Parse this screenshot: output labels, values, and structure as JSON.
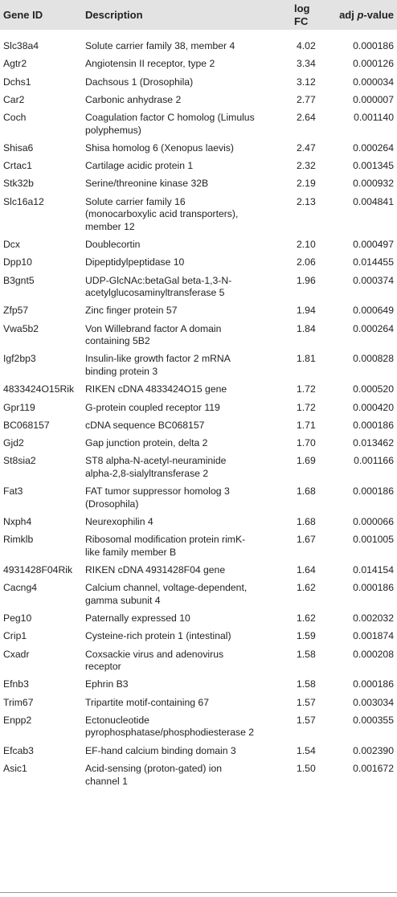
{
  "table": {
    "headers": {
      "gene_id": "Gene ID",
      "description": "Description",
      "log_fc": "log FC",
      "adj_p_prefix": "adj ",
      "adj_p_italic": "p",
      "adj_p_suffix": "-value"
    },
    "rows": [
      {
        "gene": "Slc38a4",
        "desc": "Solute carrier family 38, member 4",
        "fc": "4.02",
        "p": "0.000186"
      },
      {
        "gene": "Agtr2",
        "desc": "Angiotensin II receptor, type 2",
        "fc": "3.34",
        "p": "0.000126"
      },
      {
        "gene": "Dchs1",
        "desc": "Dachsous 1 (Drosophila)",
        "fc": "3.12",
        "p": "0.000034"
      },
      {
        "gene": "Car2",
        "desc": "Carbonic anhydrase 2",
        "fc": "2.77",
        "p": "0.000007"
      },
      {
        "gene": "Coch",
        "desc": "Coagulation factor C homolog (Limulus polyphemus)",
        "fc": "2.64",
        "p": "0.001140"
      },
      {
        "gene": "Shisa6",
        "desc": "Shisa homolog 6 (Xenopus laevis)",
        "fc": "2.47",
        "p": "0.000264"
      },
      {
        "gene": "Crtac1",
        "desc": "Cartilage acidic protein 1",
        "fc": "2.32",
        "p": "0.001345"
      },
      {
        "gene": "Stk32b",
        "desc": "Serine/threonine kinase 32B",
        "fc": "2.19",
        "p": "0.000932"
      },
      {
        "gene": "Slc16a12",
        "desc": "Solute carrier family 16 (monocarboxylic acid transporters), member 12",
        "fc": "2.13",
        "p": "0.004841"
      },
      {
        "gene": "Dcx",
        "desc": "Doublecortin",
        "fc": "2.10",
        "p": "0.000497"
      },
      {
        "gene": "Dpp10",
        "desc": "Dipeptidylpeptidase 10",
        "fc": "2.06",
        "p": "0.014455"
      },
      {
        "gene": "B3gnt5",
        "desc": "UDP-GlcNAc:betaGal beta-1,3-N-acetylglucosaminyltransferase 5",
        "fc": "1.96",
        "p": "0.000374"
      },
      {
        "gene": "Zfp57",
        "desc": "Zinc finger protein 57",
        "fc": "1.94",
        "p": "0.000649"
      },
      {
        "gene": "Vwa5b2",
        "desc": "Von Willebrand factor A domain containing 5B2",
        "fc": "1.84",
        "p": "0.000264"
      },
      {
        "gene": "Igf2bp3",
        "desc": "Insulin-like growth factor 2 mRNA binding protein 3",
        "fc": "1.81",
        "p": "0.000828"
      },
      {
        "gene": "4833424O15Rik",
        "desc": "RIKEN cDNA 4833424O15 gene",
        "fc": "1.72",
        "p": "0.000520"
      },
      {
        "gene": "Gpr119",
        "desc": "G-protein coupled receptor 119",
        "fc": "1.72",
        "p": "0.000420"
      },
      {
        "gene": "BC068157",
        "desc": "cDNA sequence BC068157",
        "fc": "1.71",
        "p": "0.000186"
      },
      {
        "gene": "Gjd2",
        "desc": "Gap junction protein, delta 2",
        "fc": "1.70",
        "p": "0.013462"
      },
      {
        "gene": "St8sia2",
        "desc": "ST8 alpha-N-acetyl-neuraminide alpha-2,8-sialyltransferase 2",
        "fc": "1.69",
        "p": "0.001166"
      },
      {
        "gene": "Fat3",
        "desc": "FAT tumor suppressor homolog 3 (Drosophila)",
        "fc": "1.68",
        "p": "0.000186"
      },
      {
        "gene": "Nxph4",
        "desc": "Neurexophilin 4",
        "fc": "1.68",
        "p": "0.000066"
      },
      {
        "gene": "Rimklb",
        "desc": "Ribosomal modification protein rimK-like family member B",
        "fc": "1.67",
        "p": "0.001005"
      },
      {
        "gene": "4931428F04Rik",
        "desc": "RIKEN cDNA 4931428F04 gene",
        "fc": "1.64",
        "p": "0.014154"
      },
      {
        "gene": "Cacng4",
        "desc": "Calcium channel, voltage-dependent, gamma subunit 4",
        "fc": "1.62",
        "p": "0.000186"
      },
      {
        "gene": "Peg10",
        "desc": "Paternally expressed 10",
        "fc": "1.62",
        "p": "0.002032"
      },
      {
        "gene": "Crip1",
        "desc": "Cysteine-rich protein 1 (intestinal)",
        "fc": "1.59",
        "p": "0.001874"
      },
      {
        "gene": "Cxadr",
        "desc": "Coxsackie virus and adenovirus receptor",
        "fc": "1.58",
        "p": "0.000208"
      },
      {
        "gene": "Efnb3",
        "desc": "Ephrin B3",
        "fc": "1.58",
        "p": "0.000186"
      },
      {
        "gene": "Trim67",
        "desc": "Tripartite motif-containing 67",
        "fc": "1.57",
        "p": "0.003034"
      },
      {
        "gene": "Enpp2",
        "desc": "Ectonucleotide pyrophosphatase/phosphodiesterase 2",
        "fc": "1.57",
        "p": "0.000355"
      },
      {
        "gene": "Efcab3",
        "desc": "EF-hand calcium binding domain 3",
        "fc": "1.54",
        "p": "0.002390"
      },
      {
        "gene": "Asic1",
        "desc": "Acid-sensing (proton-gated) ion channel 1",
        "fc": "1.50",
        "p": "0.001672"
      }
    ]
  }
}
